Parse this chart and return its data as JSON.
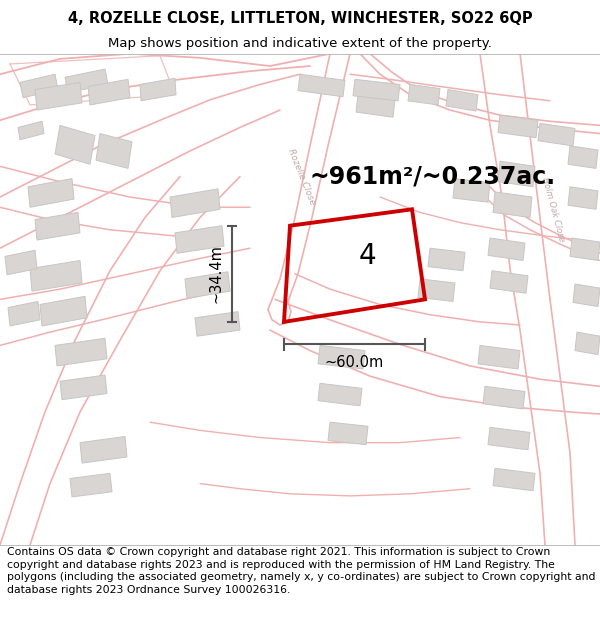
{
  "title_line1": "4, ROZELLE CLOSE, LITTLETON, WINCHESTER, SO22 6QP",
  "title_line2": "Map shows position and indicative extent of the property.",
  "footer_text": "Contains OS data © Crown copyright and database right 2021. This information is subject to Crown copyright and database rights 2023 and is reproduced with the permission of HM Land Registry. The polygons (including the associated geometry, namely x, y co-ordinates) are subject to Crown copyright and database rights 2023 Ordnance Survey 100026316.",
  "area_label": "~961m²/~0.237ac.",
  "dim_width": "~60.0m",
  "dim_height": "~34.4m",
  "property_number": "4",
  "map_bg": "#f5f2f0",
  "road_color": "#f0b0b0",
  "road_color2": "#e8a0a0",
  "building_color": "#d8d5d2",
  "building_edge": "#c8c5c2",
  "highlight_color": "#cc0000",
  "dim_color": "#555555",
  "title_fontsize": 10.5,
  "subtitle_fontsize": 9.5,
  "footer_fontsize": 7.8,
  "area_fontsize": 17,
  "property_label_fontsize": 20,
  "dim_fontsize": 10.5,
  "road_label_color": "#c0b0b0"
}
